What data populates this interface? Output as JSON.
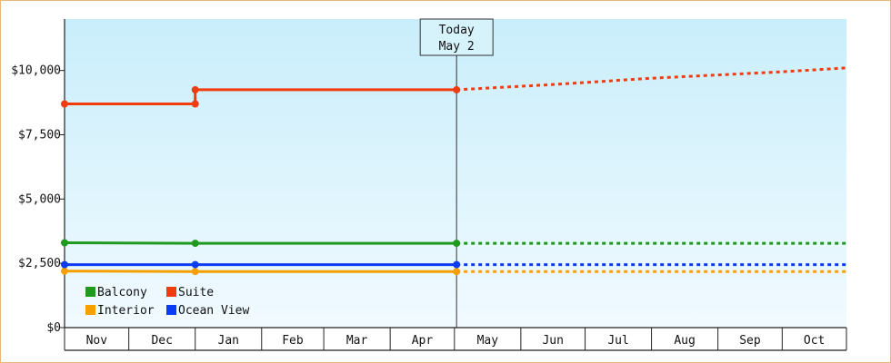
{
  "chart_data": {
    "type": "line",
    "title": "",
    "xlabel": "",
    "ylabel": "",
    "ylim": [
      0,
      12000
    ],
    "y_ticks": [
      0,
      2500,
      5000,
      7500,
      10000
    ],
    "y_tick_labels": [
      "$0",
      "$2,500",
      "$5,000",
      "$7,500",
      "$10,000"
    ],
    "x_months": [
      "Nov",
      "Dec",
      "Jan",
      "Feb",
      "Mar",
      "Apr",
      "May",
      "Jun",
      "Jul",
      "Aug",
      "Sep",
      "Oct"
    ],
    "x_range": [
      "2023-11-01",
      "2024-10-31"
    ],
    "today": {
      "date": "2024-05-02",
      "label_line1": "Today",
      "label_line2": "May 2"
    },
    "grid": false,
    "legend_position": "bottom-left",
    "series": [
      {
        "name": "Balcony",
        "color": "#1f9a1f",
        "points": [
          [
            "2023-11-01",
            3300
          ],
          [
            "2024-01-01",
            3280
          ],
          [
            "2024-05-02",
            3280
          ]
        ],
        "forecast": [
          [
            "2024-05-02",
            3280
          ],
          [
            "2024-10-31",
            3280
          ]
        ]
      },
      {
        "name": "Suite",
        "color": "#f03c0f",
        "points": [
          [
            "2023-11-01",
            8700
          ],
          [
            "2024-01-01",
            8700
          ],
          [
            "2024-01-01",
            9250
          ],
          [
            "2024-05-02",
            9250
          ]
        ],
        "forecast": [
          [
            "2024-05-02",
            9250
          ],
          [
            "2024-06-15",
            9450
          ],
          [
            "2024-08-01",
            9700
          ],
          [
            "2024-10-01",
            9950
          ],
          [
            "2024-10-31",
            10100
          ]
        ]
      },
      {
        "name": "Interior",
        "color": "#f5a000",
        "points": [
          [
            "2023-11-01",
            2200
          ],
          [
            "2024-01-01",
            2180
          ],
          [
            "2024-05-02",
            2180
          ]
        ],
        "forecast": [
          [
            "2024-05-02",
            2180
          ],
          [
            "2024-10-31",
            2180
          ]
        ]
      },
      {
        "name": "Ocean View",
        "color": "#0a3cf5",
        "points": [
          [
            "2023-11-01",
            2450
          ],
          [
            "2024-01-01",
            2450
          ],
          [
            "2024-05-02",
            2450
          ]
        ],
        "forecast": [
          [
            "2024-05-02",
            2450
          ],
          [
            "2024-10-31",
            2450
          ]
        ]
      }
    ],
    "legend": [
      "Balcony",
      "Suite",
      "Interior",
      "Ocean View"
    ]
  }
}
